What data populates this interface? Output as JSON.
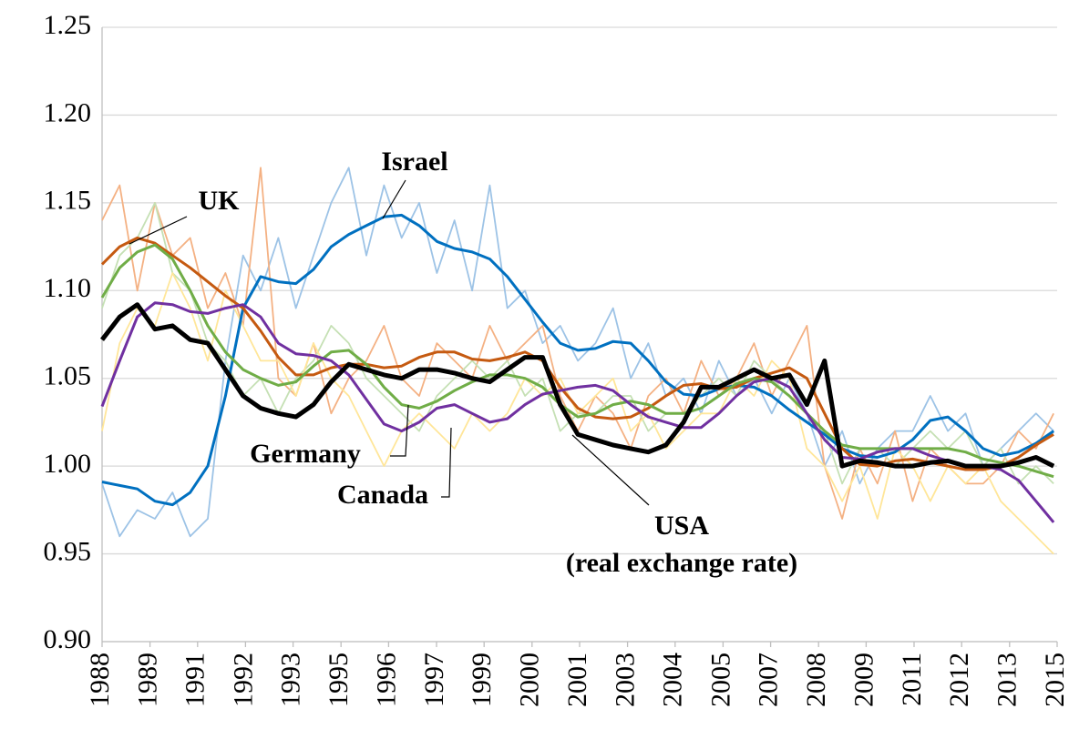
{
  "chart_data": {
    "type": "line",
    "x": [
      1988,
      1988.5,
      1989,
      1989.5,
      1990,
      1990.5,
      1991,
      1991.5,
      1992,
      1992.5,
      1993,
      1993.5,
      1994,
      1994.5,
      1995,
      1995.5,
      1996,
      1996.5,
      1997,
      1997.5,
      1998,
      1998.5,
      1999,
      1999.5,
      2000,
      2000.5,
      2001,
      2001.5,
      2002,
      2002.5,
      2003,
      2003.5,
      2004,
      2004.5,
      2005,
      2005.5,
      2006,
      2006.5,
      2007,
      2007.5,
      2008,
      2008.5,
      2009,
      2009.5,
      2010,
      2010.5,
      2011,
      2011.5,
      2012,
      2012.5,
      2013,
      2013.5,
      2014,
      2014.5,
      2015
    ],
    "xlim": [
      1988,
      2015.1
    ],
    "xticks": [
      {
        "value": 1988,
        "label": "1988"
      },
      {
        "value": 1989.36,
        "label": "1989"
      },
      {
        "value": 1990.71,
        "label": "1991"
      },
      {
        "value": 1992.07,
        "label": "1992"
      },
      {
        "value": 1993.42,
        "label": "1993"
      },
      {
        "value": 1994.78,
        "label": "1995"
      },
      {
        "value": 1996.13,
        "label": "1996"
      },
      {
        "value": 1997.49,
        "label": "1997"
      },
      {
        "value": 1998.84,
        "label": "1999"
      },
      {
        "value": 2000.2,
        "label": "2000"
      },
      {
        "value": 2001.55,
        "label": "2001"
      },
      {
        "value": 2002.91,
        "label": "2003"
      },
      {
        "value": 2004.26,
        "label": "2004"
      },
      {
        "value": 2005.62,
        "label": "2005"
      },
      {
        "value": 2006.97,
        "label": "2007"
      },
      {
        "value": 2008.33,
        "label": "2008"
      },
      {
        "value": 2009.68,
        "label": "2009"
      },
      {
        "value": 2011.04,
        "label": "2011"
      },
      {
        "value": 2012.39,
        "label": "2012"
      },
      {
        "value": 2013.75,
        "label": "2013"
      },
      {
        "value": 2015.1,
        "label": "2015"
      }
    ],
    "ylim": [
      0.9,
      1.25
    ],
    "yticks": [
      {
        "value": 0.9,
        "label": "0.90"
      },
      {
        "value": 0.95,
        "label": "0.95"
      },
      {
        "value": 1.0,
        "label": "1.00"
      },
      {
        "value": 1.05,
        "label": "1.05"
      },
      {
        "value": 1.1,
        "label": "1.10"
      },
      {
        "value": 1.15,
        "label": "1.15"
      },
      {
        "value": 1.2,
        "label": "1.20"
      },
      {
        "value": 1.25,
        "label": "1.25"
      }
    ],
    "grid": true,
    "series": [
      {
        "color": "#9dc3e6",
        "values": [
          0.99,
          0.96,
          0.975,
          0.97,
          0.985,
          0.96,
          0.97,
          1.06,
          1.12,
          1.1,
          1.13,
          1.09,
          1.12,
          1.15,
          1.17,
          1.12,
          1.16,
          1.13,
          1.15,
          1.11,
          1.14,
          1.1,
          1.16,
          1.09,
          1.1,
          1.07,
          1.08,
          1.06,
          1.07,
          1.09,
          1.05,
          1.07,
          1.04,
          1.05,
          1.03,
          1.06,
          1.04,
          1.05,
          1.03,
          1.05,
          1.03,
          1.0,
          1.02,
          0.99,
          1.01,
          1.02,
          1.02,
          1.04,
          1.02,
          1.03,
          1.0,
          1.01,
          1.02,
          1.03,
          1.02
        ]
      },
      {
        "color": "#f4b183",
        "values": [
          1.14,
          1.16,
          1.1,
          1.15,
          1.12,
          1.13,
          1.09,
          1.11,
          1.08,
          1.17,
          1.05,
          1.04,
          1.07,
          1.03,
          1.05,
          1.06,
          1.08,
          1.05,
          1.04,
          1.07,
          1.06,
          1.05,
          1.08,
          1.06,
          1.07,
          1.08,
          1.04,
          1.02,
          1.04,
          1.03,
          1.01,
          1.04,
          1.05,
          1.03,
          1.06,
          1.04,
          1.05,
          1.07,
          1.04,
          1.06,
          1.08,
          1.0,
          0.97,
          1.01,
          0.99,
          1.02,
          0.98,
          1.01,
          1.0,
          0.99,
          0.99,
          1.0,
          1.02,
          1.01,
          1.03
        ]
      },
      {
        "color": "#c5e0b4",
        "values": [
          1.09,
          1.12,
          1.13,
          1.15,
          1.11,
          1.1,
          1.07,
          1.06,
          1.04,
          1.05,
          1.03,
          1.05,
          1.06,
          1.08,
          1.07,
          1.05,
          1.04,
          1.03,
          1.02,
          1.04,
          1.05,
          1.06,
          1.05,
          1.06,
          1.04,
          1.05,
          1.02,
          1.03,
          1.03,
          1.04,
          1.04,
          1.02,
          1.03,
          1.03,
          1.04,
          1.05,
          1.04,
          1.06,
          1.05,
          1.04,
          1.03,
          1.02,
          0.99,
          1.01,
          1.01,
          1.0,
          1.01,
          1.02,
          1.01,
          1.02,
          1.0,
          1.01,
          0.99,
          1.0,
          0.99
        ]
      },
      {
        "color": "#ffe699",
        "values": [
          1.02,
          1.07,
          1.09,
          1.08,
          1.11,
          1.09,
          1.06,
          1.1,
          1.08,
          1.06,
          1.06,
          1.04,
          1.07,
          1.05,
          1.04,
          1.02,
          1.0,
          1.02,
          1.03,
          1.02,
          1.01,
          1.03,
          1.02,
          1.03,
          1.05,
          1.04,
          1.05,
          1.03,
          1.04,
          1.05,
          1.02,
          1.03,
          1.01,
          1.02,
          1.03,
          1.03,
          1.05,
          1.04,
          1.06,
          1.05,
          1.01,
          1.0,
          0.98,
          1.0,
          0.97,
          1.01,
          1.0,
          0.98,
          1.0,
          0.99,
          1.0,
          0.98,
          0.97,
          0.96,
          0.95
        ]
      },
      {
        "name": "Israel",
        "color": "#0070c0",
        "values": [
          0.991,
          0.989,
          0.987,
          0.98,
          0.978,
          0.985,
          1.0,
          1.04,
          1.09,
          1.108,
          1.105,
          1.104,
          1.112,
          1.125,
          1.132,
          1.137,
          1.142,
          1.143,
          1.137,
          1.128,
          1.124,
          1.122,
          1.118,
          1.108,
          1.095,
          1.082,
          1.07,
          1.066,
          1.067,
          1.071,
          1.07,
          1.06,
          1.048,
          1.041,
          1.04,
          1.044,
          1.046,
          1.045,
          1.04,
          1.032,
          1.025,
          1.018,
          1.01,
          1.006,
          1.005,
          1.008,
          1.015,
          1.026,
          1.028,
          1.02,
          1.01,
          1.006,
          1.008,
          1.013,
          1.02
        ]
      },
      {
        "name": "UK",
        "color": "#c55a11",
        "values": [
          1.115,
          1.125,
          1.13,
          1.127,
          1.12,
          1.113,
          1.105,
          1.097,
          1.09,
          1.077,
          1.062,
          1.052,
          1.052,
          1.056,
          1.058,
          1.058,
          1.056,
          1.057,
          1.062,
          1.065,
          1.065,
          1.061,
          1.06,
          1.062,
          1.065,
          1.06,
          1.045,
          1.033,
          1.028,
          1.027,
          1.028,
          1.033,
          1.04,
          1.046,
          1.047,
          1.044,
          1.045,
          1.05,
          1.053,
          1.056,
          1.05,
          1.03,
          1.01,
          1.001,
          1.0,
          1.003,
          1.004,
          1.002,
          1.0,
          0.998,
          0.998,
          1.0,
          1.005,
          1.012,
          1.018
        ]
      },
      {
        "name": "Germany",
        "color": "#70ad47",
        "values": [
          1.096,
          1.113,
          1.122,
          1.126,
          1.118,
          1.1,
          1.08,
          1.065,
          1.055,
          1.05,
          1.046,
          1.048,
          1.057,
          1.065,
          1.066,
          1.058,
          1.045,
          1.035,
          1.033,
          1.037,
          1.043,
          1.048,
          1.052,
          1.052,
          1.05,
          1.045,
          1.035,
          1.028,
          1.03,
          1.035,
          1.037,
          1.035,
          1.03,
          1.03,
          1.033,
          1.04,
          1.047,
          1.05,
          1.048,
          1.04,
          1.03,
          1.02,
          1.012,
          1.01,
          1.01,
          1.01,
          1.01,
          1.01,
          1.01,
          1.008,
          1.004,
          1.002,
          1.0,
          0.997,
          0.994
        ]
      },
      {
        "name": "Canada",
        "color": "#7030a0",
        "values": [
          1.034,
          1.06,
          1.085,
          1.093,
          1.092,
          1.088,
          1.087,
          1.09,
          1.092,
          1.085,
          1.07,
          1.064,
          1.063,
          1.06,
          1.052,
          1.038,
          1.024,
          1.02,
          1.025,
          1.033,
          1.035,
          1.03,
          1.025,
          1.027,
          1.035,
          1.041,
          1.043,
          1.045,
          1.046,
          1.043,
          1.035,
          1.028,
          1.025,
          1.022,
          1.022,
          1.03,
          1.04,
          1.048,
          1.05,
          1.045,
          1.03,
          1.015,
          1.005,
          1.004,
          1.008,
          1.01,
          1.01,
          1.006,
          1.003,
          1.0,
          1.0,
          0.998,
          0.992,
          0.98,
          0.968
        ]
      },
      {
        "name": "USA",
        "color": "#000000",
        "values": [
          1.072,
          1.085,
          1.092,
          1.078,
          1.08,
          1.072,
          1.07,
          1.055,
          1.04,
          1.033,
          1.03,
          1.028,
          1.035,
          1.048,
          1.058,
          1.055,
          1.052,
          1.05,
          1.055,
          1.055,
          1.053,
          1.05,
          1.048,
          1.055,
          1.062,
          1.062,
          1.035,
          1.018,
          1.015,
          1.012,
          1.01,
          1.008,
          1.012,
          1.025,
          1.045,
          1.045,
          1.05,
          1.055,
          1.05,
          1.052,
          1.035,
          1.06,
          1.0,
          1.003,
          1.002,
          1.0,
          1.0,
          1.002,
          1.003,
          1.0,
          1.0,
          1.0,
          1.002,
          1.005,
          1.0
        ]
      }
    ],
    "annotations": [
      "(real exchange rate)"
    ]
  }
}
